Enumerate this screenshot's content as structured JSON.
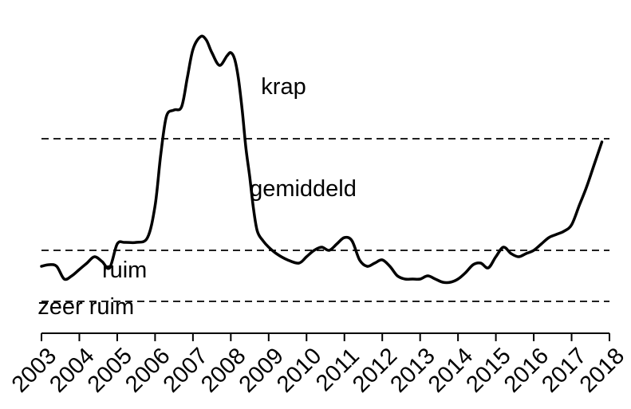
{
  "chart_data": {
    "type": "line",
    "title": "",
    "xlabel": "",
    "ylabel": "",
    "xlim": [
      2003,
      2018
    ],
    "ylim": [
      0,
      10
    ],
    "grid": false,
    "legend": "none",
    "x_ticks": [
      "2003",
      "2004",
      "2005",
      "2006",
      "2007",
      "2008",
      "2009",
      "2010",
      "2011",
      "2012",
      "2013",
      "2014",
      "2015",
      "2016",
      "2017",
      "2018"
    ],
    "thresholds": [
      {
        "name": "zeer-ruim-ruim",
        "value": 1.0
      },
      {
        "name": "ruim-gemiddeld",
        "value": 2.6
      },
      {
        "name": "gemiddeld-krap",
        "value": 6.1
      }
    ],
    "zones": [
      {
        "label": "krap",
        "x": 2008.8,
        "y": 7.5
      },
      {
        "label": "gemiddeld",
        "x": 2008.5,
        "y": 4.3
      },
      {
        "label": "ruim",
        "x": 2004.6,
        "y": 1.75
      },
      {
        "label": "zeer ruim",
        "x": 2002.9,
        "y": 0.6
      }
    ],
    "series": [
      {
        "x": [
          2003.0,
          2003.2,
          2003.4,
          2003.6,
          2003.8,
          2004.0,
          2004.2,
          2004.4,
          2004.6,
          2004.8,
          2005.0,
          2005.2,
          2005.5,
          2005.8,
          2006.0,
          2006.15,
          2006.3,
          2006.5,
          2006.7,
          2006.85,
          2007.0,
          2007.2,
          2007.35,
          2007.5,
          2007.7,
          2007.9,
          2008.0,
          2008.1,
          2008.2,
          2008.3,
          2008.4,
          2008.5,
          2008.6,
          2008.7,
          2008.85,
          2009.0,
          2009.2,
          2009.5,
          2009.8,
          2010.0,
          2010.2,
          2010.4,
          2010.6,
          2010.8,
          2011.0,
          2011.2,
          2011.4,
          2011.6,
          2011.8,
          2012.0,
          2012.2,
          2012.4,
          2012.6,
          2012.8,
          2013.0,
          2013.2,
          2013.4,
          2013.6,
          2013.8,
          2014.0,
          2014.2,
          2014.4,
          2014.6,
          2014.8,
          2015.0,
          2015.2,
          2015.4,
          2015.6,
          2015.8,
          2016.0,
          2016.2,
          2016.4,
          2016.6,
          2016.8,
          2017.0,
          2017.2,
          2017.4,
          2017.6,
          2017.8
        ],
        "y": [
          2.1,
          2.15,
          2.1,
          1.7,
          1.8,
          2.0,
          2.2,
          2.4,
          2.25,
          2.05,
          2.8,
          2.85,
          2.85,
          3.0,
          4.0,
          5.6,
          6.8,
          7.0,
          7.1,
          8.0,
          8.9,
          9.3,
          9.2,
          8.8,
          8.4,
          8.7,
          8.8,
          8.6,
          8.0,
          7.0,
          5.8,
          4.9,
          3.9,
          3.2,
          2.9,
          2.7,
          2.5,
          2.3,
          2.2,
          2.4,
          2.6,
          2.7,
          2.6,
          2.8,
          3.0,
          2.9,
          2.3,
          2.1,
          2.2,
          2.3,
          2.1,
          1.8,
          1.7,
          1.7,
          1.7,
          1.8,
          1.7,
          1.6,
          1.6,
          1.7,
          1.9,
          2.15,
          2.2,
          2.05,
          2.4,
          2.7,
          2.5,
          2.4,
          2.5,
          2.6,
          2.8,
          3.0,
          3.1,
          3.2,
          3.4,
          4.0,
          4.6,
          5.3,
          6.0
        ]
      }
    ]
  }
}
